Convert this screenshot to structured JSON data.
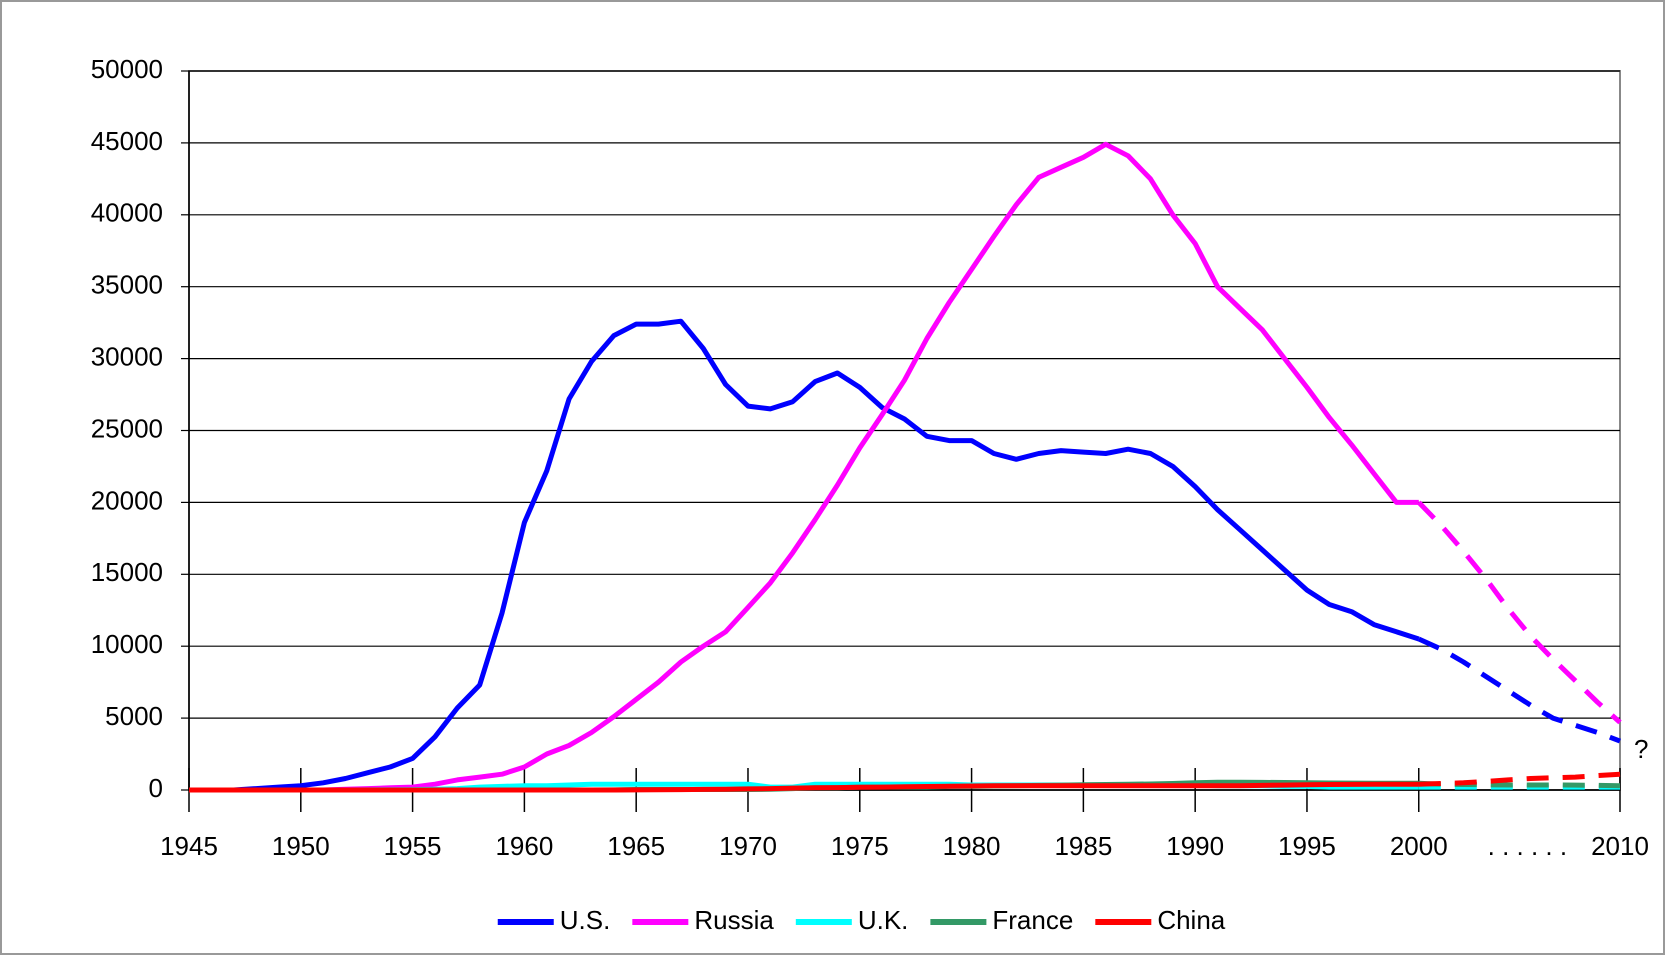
{
  "chart_data": {
    "type": "line",
    "categories": [
      1945,
      null,
      null,
      null,
      null,
      1950,
      null,
      null,
      null,
      null,
      1955,
      null,
      null,
      null,
      null,
      1960,
      null,
      null,
      null,
      null,
      1965,
      null,
      null,
      null,
      null,
      1970,
      null,
      null,
      null,
      null,
      1975,
      null,
      null,
      null,
      null,
      1980,
      null,
      null,
      null,
      null,
      1985,
      null,
      null,
      null,
      null,
      1990,
      null,
      null,
      null,
      null,
      1995,
      null,
      null,
      null,
      null,
      2000,
      null,
      null,
      null,
      null,
      null,
      null,
      null,
      null,
      2010
    ],
    "series": [
      {
        "name": "U.S.",
        "color": "#0000ff",
        "values": [
          0,
          0,
          0,
          100,
          200,
          300,
          500,
          800,
          1200,
          1600,
          2200,
          3700,
          5700,
          7300,
          12300,
          18600,
          22200,
          27200,
          29800,
          31600,
          32400,
          32400,
          32600,
          30700,
          28200,
          26700,
          26500,
          27000,
          28400,
          29000,
          28000,
          26600,
          25800,
          24600,
          24300,
          24300,
          23400,
          23000,
          23400,
          23600,
          23500,
          23400,
          23700,
          23400,
          22500,
          21100,
          19500,
          18100,
          16700,
          15300,
          13900,
          12900,
          12400,
          11500,
          11000,
          10500,
          9800,
          8900,
          7900,
          6900,
          5900,
          5000,
          4500,
          4000,
          3400
        ]
      },
      {
        "name": "Russia",
        "color": "#ff00ff",
        "values": [
          0,
          0,
          0,
          0,
          0,
          0,
          0,
          50,
          100,
          150,
          200,
          400,
          700,
          900,
          1100,
          1600,
          2500,
          3100,
          4000,
          5100,
          6300,
          7500,
          8900,
          10000,
          11000,
          12700,
          14400,
          16500,
          18800,
          21200,
          23800,
          26100,
          28500,
          31400,
          33900,
          36200,
          38500,
          40700,
          42600,
          43300,
          44000,
          44900,
          44100,
          42500,
          40000,
          38000,
          35000,
          33500,
          32000,
          30000,
          28000,
          25900,
          24000,
          22000,
          20000,
          20000,
          18400,
          16600,
          14700,
          12600,
          10700,
          9100,
          7600,
          6100,
          4700
        ]
      },
      {
        "name": "U.K.",
        "color": "#00ffff",
        "values": [
          0,
          0,
          0,
          0,
          0,
          0,
          0,
          0,
          10,
          20,
          30,
          50,
          100,
          200,
          250,
          300,
          300,
          350,
          400,
          400,
          400,
          400,
          400,
          400,
          400,
          400,
          200,
          200,
          400,
          400,
          400,
          400,
          400,
          400,
          400,
          350,
          350,
          350,
          350,
          350,
          350,
          350,
          350,
          350,
          350,
          350,
          300,
          300,
          300,
          250,
          250,
          200,
          200,
          200,
          200,
          200,
          200,
          200,
          200,
          200,
          200,
          200,
          200,
          200,
          200
        ]
      },
      {
        "name": "France",
        "color": "#339966",
        "values": [
          0,
          0,
          0,
          0,
          0,
          0,
          0,
          0,
          0,
          0,
          0,
          0,
          0,
          0,
          0,
          0,
          0,
          0,
          0,
          4,
          32,
          36,
          36,
          36,
          36,
          36,
          50,
          100,
          150,
          150,
          200,
          200,
          200,
          200,
          250,
          250,
          280,
          300,
          320,
          340,
          360,
          380,
          400,
          420,
          450,
          505,
          540,
          540,
          530,
          520,
          500,
          490,
          480,
          470,
          470,
          470,
          400,
          380,
          360,
          350,
          350,
          350,
          340,
          320,
          300
        ]
      },
      {
        "name": "China",
        "color": "#ff0000",
        "values": [
          0,
          0,
          0,
          0,
          0,
          0,
          0,
          0,
          0,
          0,
          0,
          0,
          0,
          0,
          0,
          0,
          0,
          0,
          0,
          0,
          5,
          20,
          30,
          40,
          50,
          75,
          100,
          130,
          150,
          170,
          185,
          200,
          220,
          240,
          260,
          280,
          290,
          300,
          300,
          300,
          300,
          300,
          300,
          300,
          300,
          300,
          300,
          300,
          320,
          340,
          360,
          380,
          390,
          400,
          400,
          400,
          450,
          500,
          600,
          700,
          800,
          850,
          900,
          1000,
          1100
        ]
      }
    ],
    "projected_from": 2000,
    "categories_gap_label": ". . . . . .",
    "annotation": "?",
    "ylim": [
      0,
      50000
    ],
    "yticks": [
      0,
      5000,
      10000,
      15000,
      20000,
      25000,
      30000,
      35000,
      40000,
      45000,
      50000
    ],
    "grid": true,
    "legend": "bottom"
  }
}
